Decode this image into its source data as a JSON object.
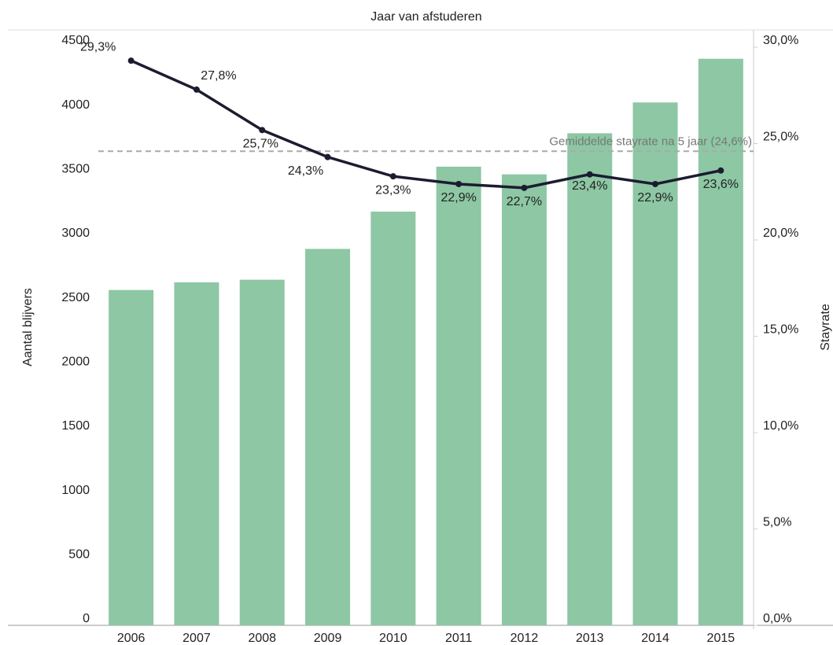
{
  "chart_data": {
    "type": "bar_line",
    "title": "Jaar van afstuderen",
    "ylabel": "Aantal blijvers",
    "y2label": "Stayrate",
    "categories": [
      "2006",
      "2007",
      "2008",
      "2009",
      "2010",
      "2011",
      "2012",
      "2013",
      "2014",
      "2015"
    ],
    "series": [
      {
        "name": "Aantal blijvers",
        "type": "bar",
        "color": "#8dc7a4",
        "values": [
          2610,
          2670,
          2690,
          2930,
          3220,
          3570,
          3510,
          3830,
          4070,
          4410
        ]
      },
      {
        "name": "Stayrate",
        "type": "line",
        "color": "#1c1c30",
        "axis": "y2",
        "values": [
          29.3,
          27.8,
          25.7,
          24.3,
          23.3,
          22.9,
          22.7,
          23.4,
          22.9,
          23.6
        ],
        "value_labels": [
          "29,3%",
          "27,8%",
          "25,7%",
          "24,3%",
          "23,3%",
          "22,9%",
          "22,7%",
          "23,4%",
          "22,9%",
          "23,6%"
        ]
      }
    ],
    "ylim": [
      0,
      4500
    ],
    "yticks": [
      0,
      500,
      1000,
      1500,
      2000,
      2500,
      3000,
      3500,
      4000,
      4500
    ],
    "y2lim": [
      0,
      30
    ],
    "y2ticks": [
      {
        "value": 0,
        "label": "0,0%"
      },
      {
        "value": 5,
        "label": "5,0%"
      },
      {
        "value": 10,
        "label": "10,0%"
      },
      {
        "value": 15,
        "label": "15,0%"
      },
      {
        "value": 20,
        "label": "20,0%"
      },
      {
        "value": 25,
        "label": "25,0%"
      },
      {
        "value": 30,
        "label": "30,0%"
      }
    ],
    "reference_line": {
      "value": 24.6,
      "axis": "y2",
      "label": "Gemiddelde stayrate na 5 jaar (24,6%)",
      "color": "#aaaaaa"
    }
  }
}
